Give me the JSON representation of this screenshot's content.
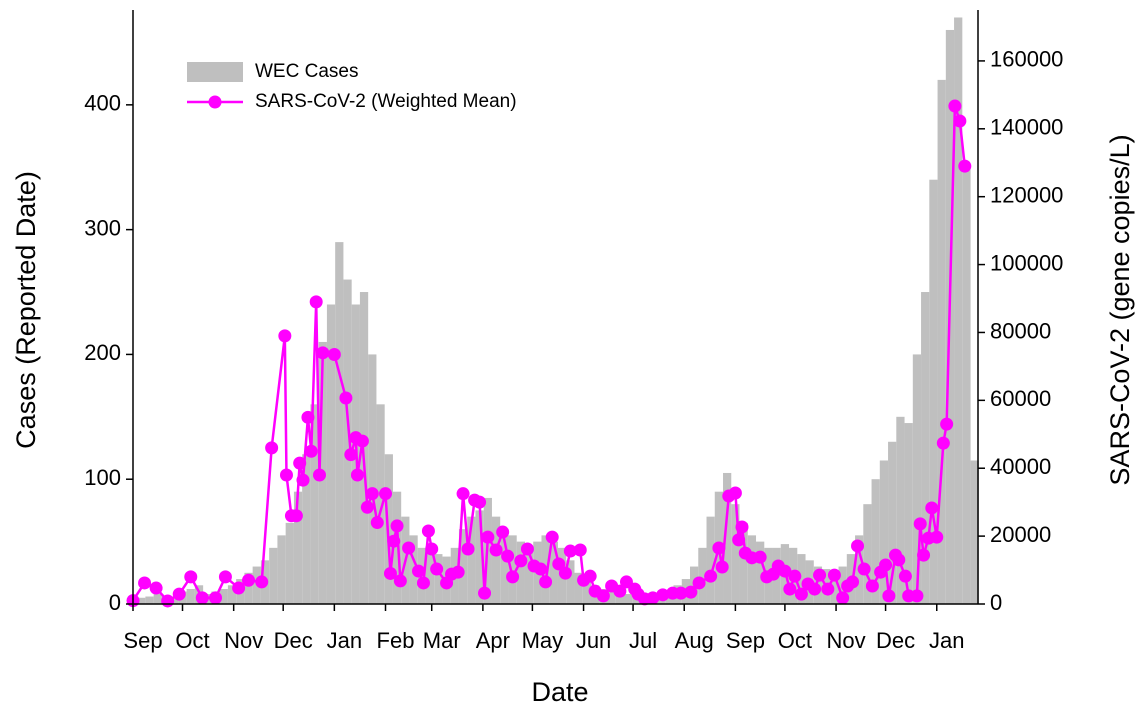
{
  "chart_data": {
    "type": "bar",
    "x_label": "Date",
    "y_label": "Cases (Reported Date)",
    "y2_label": "SARS-CoV-2 (gene copies/L)",
    "xlim": [
      0,
      512
    ],
    "xticks": [
      {
        "value": 0,
        "label": "Sep"
      },
      {
        "value": 30,
        "label": "Oct"
      },
      {
        "value": 61,
        "label": "Nov"
      },
      {
        "value": 91,
        "label": "Dec"
      },
      {
        "value": 122,
        "label": "Jan"
      },
      {
        "value": 153,
        "label": "Feb"
      },
      {
        "value": 181,
        "label": "Mar"
      },
      {
        "value": 212,
        "label": "Apr"
      },
      {
        "value": 242,
        "label": "May"
      },
      {
        "value": 273,
        "label": "Jun"
      },
      {
        "value": 303,
        "label": "Jul"
      },
      {
        "value": 334,
        "label": "Aug"
      },
      {
        "value": 365,
        "label": "Sep"
      },
      {
        "value": 395,
        "label": "Oct"
      },
      {
        "value": 426,
        "label": "Nov"
      },
      {
        "value": 456,
        "label": "Dec"
      },
      {
        "value": 487,
        "label": "Jan"
      }
    ],
    "ylim": [
      0,
      476
    ],
    "yticks": [
      0,
      100,
      200,
      300,
      400
    ],
    "y2lim": [
      0,
      175000
    ],
    "y2ticks": [
      0,
      20000,
      40000,
      60000,
      80000,
      100000,
      120000,
      140000,
      160000
    ],
    "legend": "upper left",
    "series": [
      {
        "name": "WEC Cases",
        "type": "bar",
        "color": "#bfbfbf",
        "x": [
          0,
          5,
          10,
          15,
          20,
          25,
          30,
          35,
          40,
          45,
          50,
          55,
          60,
          65,
          70,
          75,
          80,
          85,
          90,
          95,
          100,
          105,
          110,
          115,
          120,
          125,
          130,
          135,
          140,
          145,
          150,
          155,
          160,
          165,
          170,
          175,
          180,
          185,
          190,
          195,
          200,
          205,
          210,
          215,
          220,
          225,
          230,
          235,
          240,
          245,
          250,
          255,
          260,
          265,
          270,
          275,
          280,
          285,
          290,
          295,
          300,
          305,
          310,
          315,
          320,
          325,
          330,
          335,
          340,
          345,
          350,
          355,
          360,
          365,
          370,
          375,
          380,
          385,
          390,
          395,
          400,
          405,
          410,
          415,
          420,
          425,
          430,
          435,
          440,
          445,
          450,
          455,
          460,
          465,
          470,
          475,
          480,
          485,
          490,
          495,
          500,
          505,
          510
        ],
        "values": [
          3,
          5,
          6,
          8,
          6,
          5,
          10,
          12,
          15,
          8,
          10,
          12,
          15,
          20,
          25,
          30,
          35,
          45,
          55,
          65,
          90,
          120,
          160,
          210,
          240,
          290,
          260,
          240,
          250,
          200,
          160,
          120,
          90,
          70,
          55,
          45,
          40,
          40,
          38,
          45,
          60,
          70,
          75,
          85,
          70,
          60,
          55,
          50,
          45,
          50,
          55,
          50,
          45,
          35,
          25,
          20,
          15,
          12,
          10,
          10,
          8,
          8,
          6,
          6,
          7,
          10,
          15,
          20,
          30,
          45,
          70,
          90,
          105,
          80,
          65,
          55,
          50,
          45,
          45,
          48,
          45,
          40,
          35,
          30,
          28,
          25,
          30,
          40,
          55,
          80,
          100,
          115,
          130,
          150,
          145,
          200,
          250,
          340,
          420,
          460,
          470,
          350,
          115
        ]
      },
      {
        "name": "SARS-CoV-2 (Weighted Mean)",
        "type": "line",
        "axis": "y2",
        "color": "#ff00ff",
        "x": [
          0,
          7,
          14,
          21,
          28,
          35,
          42,
          50,
          56,
          64,
          70,
          78,
          84,
          92,
          93,
          96,
          99,
          101,
          103,
          106,
          108,
          111,
          113,
          115,
          122,
          129,
          132,
          135,
          136,
          139,
          142,
          145,
          148,
          153,
          156,
          158,
          160,
          162,
          167,
          173,
          176,
          179,
          181,
          184,
          190,
          193,
          197,
          200,
          203,
          207,
          210,
          213,
          215,
          220,
          224,
          227,
          230,
          235,
          239,
          243,
          247,
          250,
          254,
          258,
          262,
          265,
          271,
          273,
          277,
          280,
          285,
          290,
          295,
          299,
          304,
          306,
          310,
          315,
          321,
          327,
          332,
          338,
          343,
          350,
          355,
          357,
          361,
          365,
          367,
          369,
          371,
          375,
          380,
          384,
          388,
          391,
          395,
          398,
          401,
          405,
          409,
          413,
          416,
          421,
          425,
          430,
          433,
          436,
          439,
          443,
          448,
          453,
          456,
          458,
          462,
          464,
          468,
          470,
          475,
          477,
          479,
          482,
          484,
          487,
          491,
          493,
          498,
          501,
          504
        ],
        "values": [
          1000,
          6200,
          4700,
          900,
          2900,
          8000,
          1800,
          1800,
          8000,
          4700,
          7000,
          6500,
          46000,
          79000,
          38000,
          26000,
          26000,
          41500,
          36500,
          55000,
          45000,
          89000,
          38000,
          74000,
          73500,
          60700,
          44000,
          49000,
          38000,
          48000,
          28500,
          32500,
          24000,
          32500,
          9000,
          18500,
          23000,
          6800,
          16500,
          9700,
          6200,
          21500,
          16200,
          10300,
          6200,
          8800,
          9400,
          32500,
          16200,
          30600,
          30000,
          3200,
          19700,
          15900,
          21200,
          14100,
          8000,
          12700,
          16200,
          11200,
          10300,
          6500,
          19700,
          11800,
          9100,
          15600,
          15900,
          7000,
          8200,
          3800,
          2400,
          5300,
          3800,
          6500,
          4400,
          2900,
          1500,
          1800,
          2700,
          3200,
          3200,
          3500,
          6200,
          8200,
          16500,
          10900,
          31800,
          32700,
          18900,
          22700,
          15000,
          13600,
          13800,
          8000,
          8800,
          11200,
          9700,
          4400,
          8200,
          2900,
          5900,
          4400,
          8500,
          4400,
          8500,
          1800,
          5300,
          6500,
          17100,
          10300,
          5300,
          9400,
          11500,
          2400,
          14400,
          13000,
          8200,
          2400,
          2400,
          23600,
          14400,
          19400,
          28300,
          19700,
          47400,
          53000,
          146700,
          142300,
          129000
        ]
      }
    ]
  }
}
